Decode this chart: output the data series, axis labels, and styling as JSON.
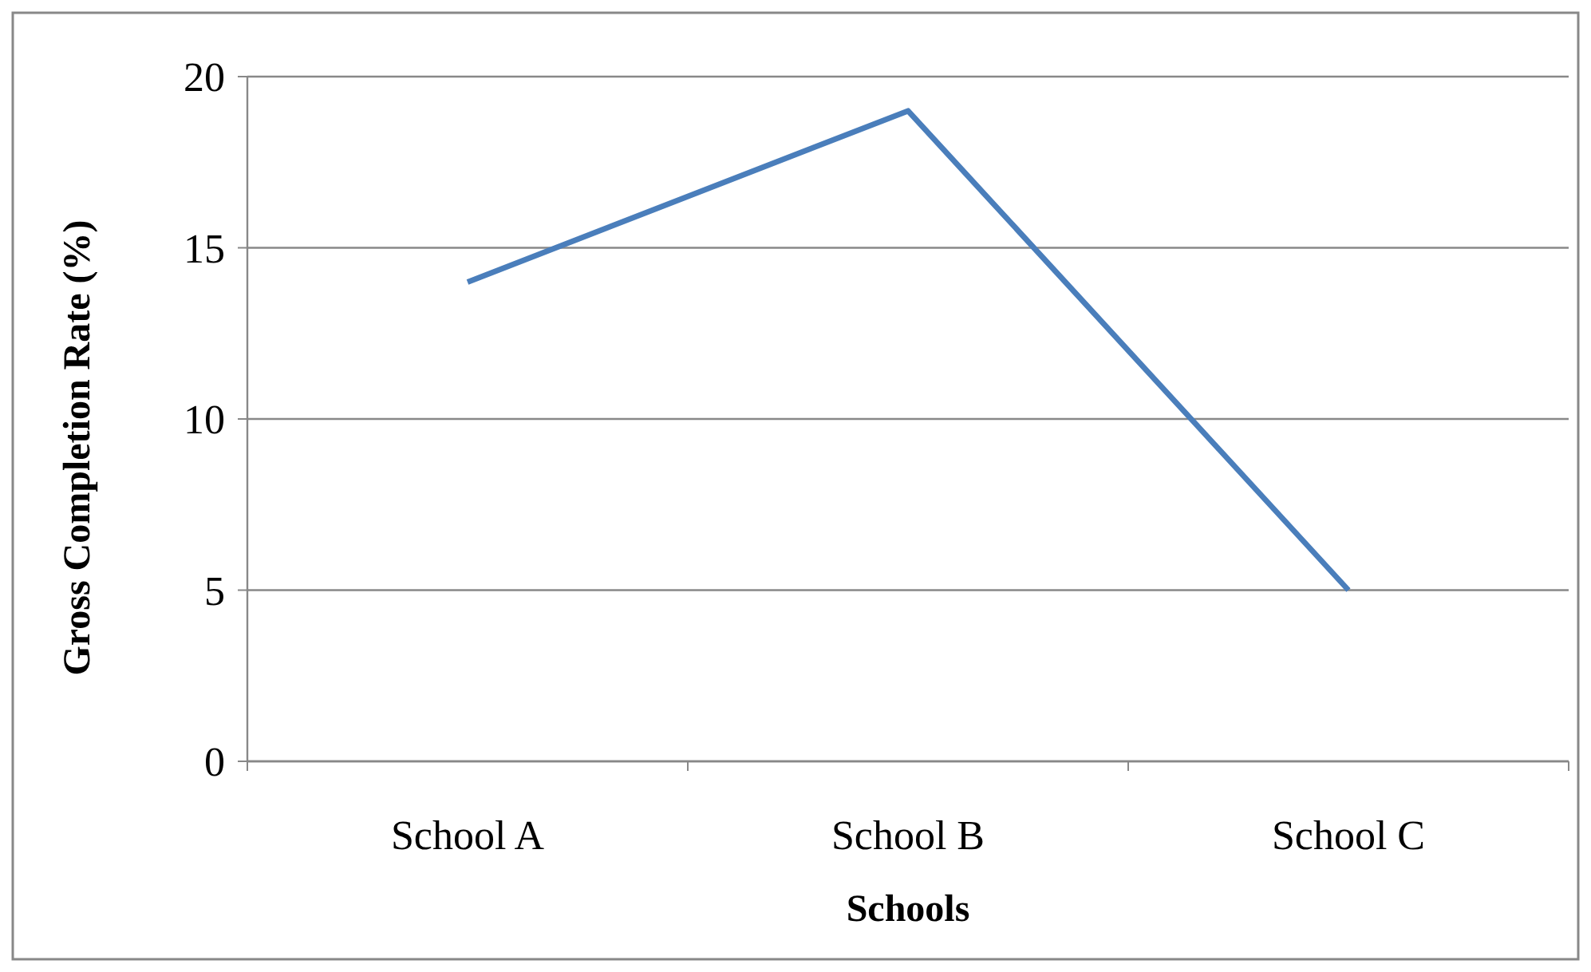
{
  "chart_data": {
    "type": "line",
    "categories": [
      "School A",
      "School B",
      "School C"
    ],
    "series": [
      {
        "color": "#4a7ebb",
        "values": [
          14,
          19,
          5
        ]
      }
    ],
    "ylim": [
      0,
      20
    ],
    "yticks": [
      0,
      5,
      10,
      15,
      20
    ],
    "grid": "y",
    "marker": "none",
    "line_style": "solid",
    "xlabel": "Schools",
    "ylabel": "Gross Completion Rate (%)"
  }
}
